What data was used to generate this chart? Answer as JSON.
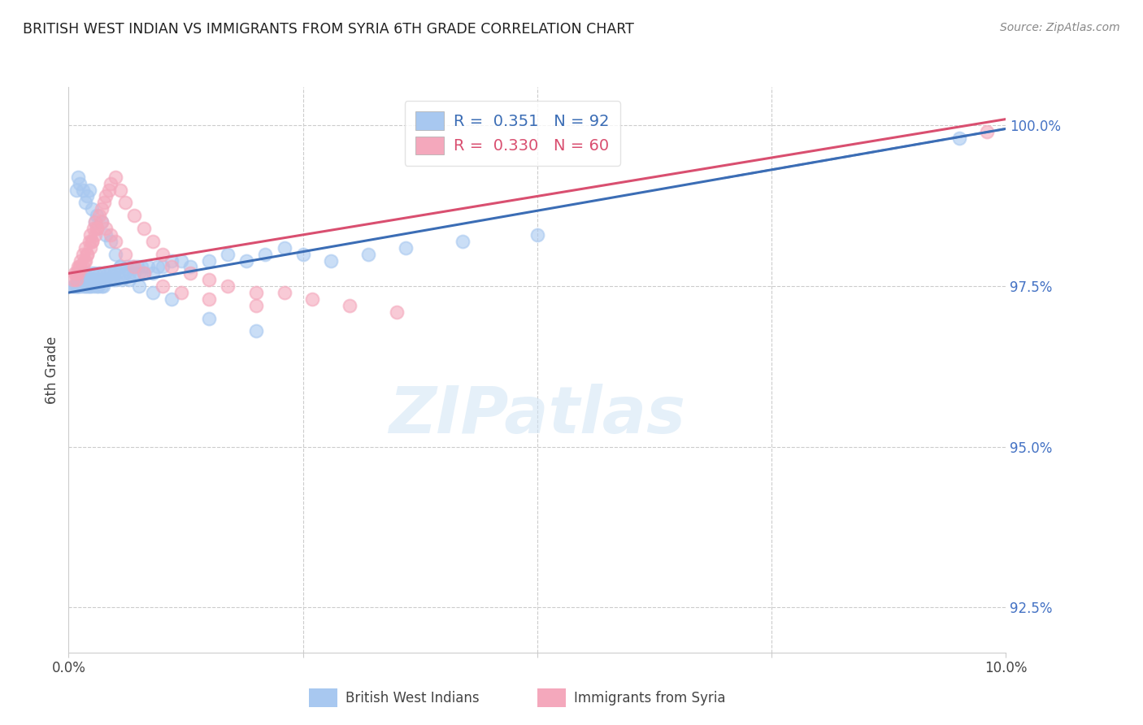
{
  "title": "BRITISH WEST INDIAN VS IMMIGRANTS FROM SYRIA 6TH GRADE CORRELATION CHART",
  "source": "Source: ZipAtlas.com",
  "ylabel": "6th Grade",
  "x_min": 0.0,
  "x_max": 10.0,
  "y_min": 91.8,
  "y_max": 100.6,
  "yticks": [
    92.5,
    95.0,
    97.5,
    100.0
  ],
  "ytick_labels": [
    "92.5%",
    "95.0%",
    "97.5%",
    "100.0%"
  ],
  "blue_color": "#A8C8F0",
  "pink_color": "#F4A8BC",
  "blue_line_color": "#3B6DB5",
  "pink_line_color": "#D94F70",
  "blue_r": "0.351",
  "blue_n": "92",
  "pink_r": "0.330",
  "pink_n": "60",
  "legend_label_blue": "British West Indians",
  "legend_label_pink": "Immigrants from Syria",
  "watermark": "ZIPatlas",
  "background_color": "#ffffff",
  "grid_color": "#cccccc",
  "right_axis_color": "#4472C4",
  "blue_scatter_x": [
    0.05,
    0.07,
    0.08,
    0.09,
    0.1,
    0.1,
    0.12,
    0.13,
    0.15,
    0.15,
    0.17,
    0.18,
    0.18,
    0.2,
    0.2,
    0.22,
    0.23,
    0.23,
    0.25,
    0.25,
    0.27,
    0.28,
    0.28,
    0.3,
    0.3,
    0.32,
    0.33,
    0.33,
    0.35,
    0.35,
    0.37,
    0.38,
    0.38,
    0.4,
    0.42,
    0.43,
    0.45,
    0.47,
    0.48,
    0.5,
    0.52,
    0.55,
    0.57,
    0.6,
    0.62,
    0.65,
    0.68,
    0.7,
    0.73,
    0.75,
    0.78,
    0.8,
    0.85,
    0.9,
    0.95,
    1.0,
    1.1,
    1.2,
    1.3,
    1.5,
    1.7,
    1.9,
    2.1,
    2.3,
    2.5,
    2.8,
    3.2,
    3.6,
    4.2,
    5.0,
    0.08,
    0.1,
    0.12,
    0.15,
    0.18,
    0.2,
    0.22,
    0.25,
    0.28,
    0.3,
    0.35,
    0.4,
    0.45,
    0.5,
    0.55,
    0.65,
    0.75,
    0.9,
    1.1,
    1.5,
    2.0,
    9.5
  ],
  "blue_scatter_y": [
    97.5,
    97.5,
    97.5,
    97.5,
    97.5,
    97.6,
    97.5,
    97.6,
    97.7,
    97.5,
    97.6,
    97.5,
    97.7,
    97.5,
    97.6,
    97.5,
    97.6,
    97.5,
    97.6,
    97.7,
    97.5,
    97.6,
    97.7,
    97.5,
    97.6,
    97.5,
    97.6,
    97.7,
    97.5,
    97.6,
    97.5,
    97.6,
    97.7,
    97.6,
    97.7,
    97.6,
    97.7,
    97.6,
    97.7,
    97.6,
    97.7,
    97.8,
    97.6,
    97.7,
    97.8,
    97.7,
    97.8,
    97.7,
    97.8,
    97.7,
    97.8,
    97.7,
    97.8,
    97.7,
    97.8,
    97.8,
    97.9,
    97.9,
    97.8,
    97.9,
    98.0,
    97.9,
    98.0,
    98.1,
    98.0,
    97.9,
    98.0,
    98.1,
    98.2,
    98.3,
    99.0,
    99.2,
    99.1,
    99.0,
    98.8,
    98.9,
    99.0,
    98.7,
    98.5,
    98.6,
    98.5,
    98.3,
    98.2,
    98.0,
    97.8,
    97.6,
    97.5,
    97.4,
    97.3,
    97.0,
    96.8,
    99.8
  ],
  "pink_scatter_x": [
    0.05,
    0.07,
    0.08,
    0.1,
    0.12,
    0.13,
    0.15,
    0.17,
    0.18,
    0.2,
    0.22,
    0.23,
    0.25,
    0.27,
    0.28,
    0.3,
    0.33,
    0.35,
    0.38,
    0.4,
    0.43,
    0.45,
    0.5,
    0.55,
    0.6,
    0.7,
    0.8,
    0.9,
    1.0,
    1.1,
    1.3,
    1.5,
    1.7,
    2.0,
    2.3,
    2.6,
    3.0,
    3.5,
    0.08,
    0.1,
    0.12,
    0.15,
    0.18,
    0.2,
    0.23,
    0.25,
    0.28,
    0.3,
    0.35,
    0.4,
    0.45,
    0.5,
    0.6,
    0.7,
    0.8,
    1.0,
    1.2,
    1.5,
    2.0,
    9.8
  ],
  "pink_scatter_y": [
    97.6,
    97.7,
    97.7,
    97.8,
    97.8,
    97.9,
    98.0,
    97.9,
    98.1,
    98.0,
    98.2,
    98.3,
    98.2,
    98.4,
    98.5,
    98.4,
    98.6,
    98.7,
    98.8,
    98.9,
    99.0,
    99.1,
    99.2,
    99.0,
    98.8,
    98.6,
    98.4,
    98.2,
    98.0,
    97.8,
    97.7,
    97.6,
    97.5,
    97.4,
    97.4,
    97.3,
    97.2,
    97.1,
    97.6,
    97.7,
    97.8,
    97.8,
    97.9,
    98.0,
    98.1,
    98.2,
    98.3,
    98.4,
    98.5,
    98.4,
    98.3,
    98.2,
    98.0,
    97.8,
    97.7,
    97.5,
    97.4,
    97.3,
    97.2,
    99.9
  ],
  "blue_trend_x0": 0.0,
  "blue_trend_x1": 10.0,
  "blue_trend_y0": 97.4,
  "blue_trend_y1": 99.95,
  "pink_trend_x0": 0.0,
  "pink_trend_x1": 10.0,
  "pink_trend_y0": 97.7,
  "pink_trend_y1": 100.1
}
